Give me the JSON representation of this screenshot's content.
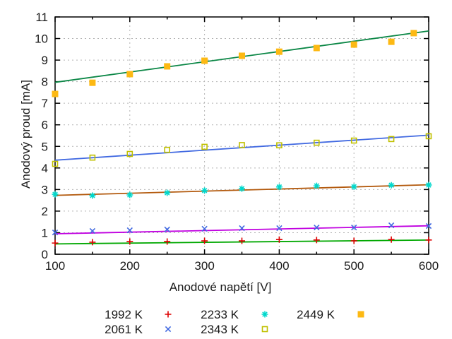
{
  "chart_data": {
    "type": "scatter",
    "title": "",
    "xlabel": "Anodové napětí [V]",
    "ylabel": "Anodový proud [mA]",
    "xlim": [
      100,
      600
    ],
    "ylim": [
      0,
      11
    ],
    "xticks": [
      100,
      200,
      300,
      400,
      500,
      600
    ],
    "x_minor_step": 50,
    "yticks": [
      0,
      1,
      2,
      3,
      4,
      5,
      6,
      7,
      8,
      9,
      10,
      11
    ],
    "grid": true,
    "legend_position": "below-plot-two-rows",
    "frame_color": "#000000",
    "grid_color": "#b3b3b3",
    "series": [
      {
        "name": "1992 K",
        "marker": "plus",
        "marker_color": "#dd0000",
        "fit_line_color": "#00a800",
        "x": [
          100,
          150,
          200,
          250,
          300,
          350,
          400,
          450,
          500,
          550,
          600
        ],
        "y": [
          0.52,
          0.56,
          0.59,
          0.59,
          0.62,
          0.62,
          0.68,
          0.66,
          0.62,
          0.68,
          0.66
        ],
        "fit": {
          "x": [
            100,
            600
          ],
          "y": [
            0.48,
            0.66
          ]
        }
      },
      {
        "name": "2061 K",
        "marker": "cross",
        "marker_color": "#4169e1",
        "fit_line_color": "#c000e0",
        "x": [
          100,
          150,
          200,
          250,
          300,
          350,
          400,
          450,
          500,
          550,
          600
        ],
        "y": [
          1.01,
          1.08,
          1.11,
          1.15,
          1.18,
          1.21,
          1.21,
          1.24,
          1.24,
          1.34,
          1.31
        ],
        "fit": {
          "x": [
            100,
            600
          ],
          "y": [
            0.95,
            1.32
          ]
        }
      },
      {
        "name": "2233 K",
        "marker": "asterisk",
        "marker_color": "#00d8cc",
        "fit_line_color": "#b35a0e",
        "x": [
          100,
          150,
          200,
          250,
          300,
          350,
          400,
          450,
          500,
          550,
          600
        ],
        "y": [
          2.78,
          2.72,
          2.75,
          2.85,
          2.95,
          3.04,
          3.12,
          3.17,
          3.13,
          3.2,
          3.21
        ],
        "fit": {
          "x": [
            100,
            600
          ],
          "y": [
            2.73,
            3.22
          ]
        }
      },
      {
        "name": "2343 K",
        "marker": "open-square",
        "marker_color": "#c0c000",
        "fit_line_color": "#4169e1",
        "x": [
          100,
          150,
          200,
          250,
          300,
          350,
          400,
          450,
          500,
          550,
          600
        ],
        "y": [
          4.19,
          4.48,
          4.65,
          4.84,
          4.98,
          5.06,
          5.05,
          5.17,
          5.27,
          5.34,
          5.47
        ],
        "fit": {
          "x": [
            100,
            600
          ],
          "y": [
            4.36,
            5.52
          ]
        }
      },
      {
        "name": "2449 K",
        "marker": "filled-square",
        "marker_color": "#fdb913",
        "fit_line_color": "#0b8746",
        "x": [
          100,
          150,
          200,
          250,
          300,
          350,
          400,
          450,
          500,
          550,
          580
        ],
        "y": [
          7.43,
          7.95,
          8.35,
          8.71,
          8.97,
          9.2,
          9.39,
          9.56,
          9.72,
          9.85,
          10.25
        ],
        "fit": {
          "x": [
            100,
            600
          ],
          "y": [
            7.97,
            10.35
          ]
        }
      }
    ]
  }
}
